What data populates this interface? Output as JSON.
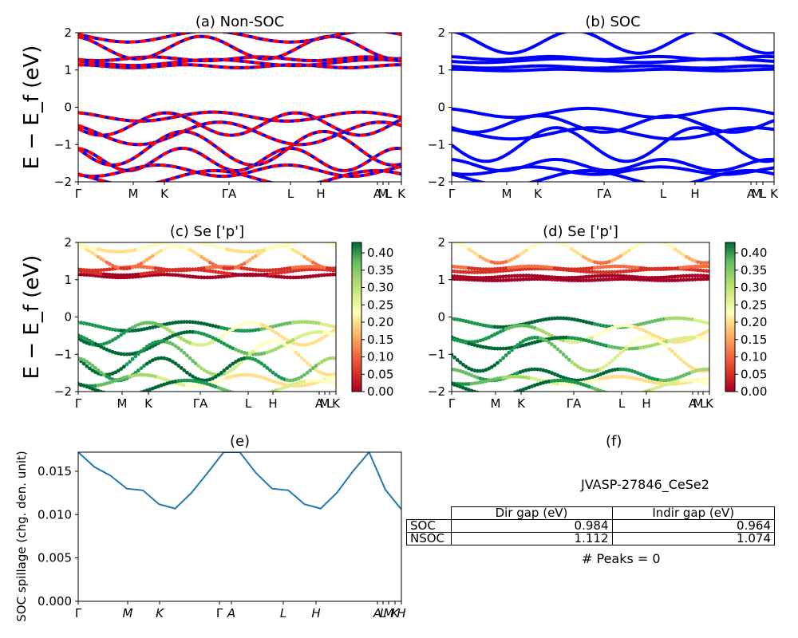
{
  "chart_data": [
    {
      "type": "line",
      "panel": "a",
      "title": "(a) Non-SOC",
      "ylabel": "E − E_f (eV)",
      "ylim": [
        -2,
        2
      ],
      "yticks": [
        "2",
        "1",
        "0",
        "−1",
        "−2"
      ],
      "xticks": [
        "Γ",
        "M",
        "K",
        "ΓA",
        "L",
        "H",
        "A",
        "M",
        "L",
        "K"
      ],
      "series": [
        {
          "color": "#0000ff",
          "values": [
            1.1,
            1.15,
            1.2,
            1.25,
            1.3,
            1.6,
            1.9,
            1.3,
            1.1,
            -0.2,
            -0.35,
            -0.6,
            -0.9,
            -1.2,
            -1.5,
            -1.65,
            -1.9
          ]
        },
        {
          "color": "#ff0000",
          "values": [
            1.1,
            1.15,
            1.2,
            1.25,
            1.3,
            1.6,
            1.9,
            1.3,
            1.1,
            -0.2,
            -0.35,
            -0.6,
            -0.9,
            -1.2,
            -1.5,
            -1.65,
            -1.9
          ]
        }
      ]
    },
    {
      "type": "line",
      "panel": "b",
      "title": "(b) SOC",
      "ylim": [
        -2,
        2
      ],
      "yticks": [
        "2",
        "1",
        "0",
        "−1",
        "−2"
      ],
      "xticks": [
        "Γ",
        "M",
        "K",
        "ΓA",
        "L",
        "H",
        "A",
        "M",
        "L",
        "K"
      ],
      "series": [
        {
          "color": "#0000ff",
          "values": [
            1.0,
            1.05,
            1.1,
            1.25,
            1.3,
            1.35,
            1.9,
            -0.15,
            -0.25,
            -0.6,
            -0.65,
            -1.0,
            -1.5,
            -1.6,
            -1.7
          ]
        }
      ]
    },
    {
      "type": "scatter",
      "panel": "c",
      "title": "(c)  Se ['p']",
      "ylabel": "E − E_f (eV)",
      "ylim": [
        -2,
        2
      ],
      "yticks": [
        "2",
        "1",
        "0",
        "−1",
        "−2"
      ],
      "xticks": [
        "Γ",
        "M",
        "K",
        "ΓA",
        "L",
        "H",
        "A",
        "M",
        "L",
        "K"
      ],
      "colorbar": {
        "min": 0.0,
        "max": 0.43,
        "ticks": [
          "0.00",
          "0.05",
          "0.10",
          "0.15",
          "0.20",
          "0.25",
          "0.30",
          "0.35",
          "0.40"
        ]
      }
    },
    {
      "type": "scatter",
      "panel": "d",
      "title": "(d) Se ['p']",
      "ylim": [
        -2,
        2
      ],
      "yticks": [
        "2",
        "1",
        "0",
        "−1",
        "−2"
      ],
      "xticks": [
        "Γ",
        "M",
        "K",
        "ΓA",
        "L",
        "H",
        "A",
        "M",
        "L",
        "K"
      ],
      "colorbar": {
        "min": 0.0,
        "max": 0.43,
        "ticks": [
          "0.00",
          "0.05",
          "0.10",
          "0.15",
          "0.20",
          "0.25",
          "0.30",
          "0.35",
          "0.40"
        ]
      }
    },
    {
      "type": "line",
      "panel": "e",
      "title": "(e)",
      "ylabel": "SOC spillage (chg. den. unit)",
      "ylim": [
        0,
        0.0172
      ],
      "yticks": [
        "0.000",
        "0.005",
        "0.010",
        "0.015"
      ],
      "xticks": [
        "Γ",
        "M",
        "K",
        "Γ",
        "A",
        "L",
        "H",
        "A",
        "L",
        "M",
        "K",
        "H"
      ],
      "series": [
        {
          "color": "#1f77b4",
          "x": [
            0,
            0.05,
            0.1,
            0.15,
            0.2,
            0.25,
            0.3,
            0.35,
            0.4,
            0.45,
            0.5,
            0.55,
            0.6,
            0.65,
            0.7,
            0.75,
            0.8,
            0.85,
            0.9,
            0.95,
            1.0
          ],
          "values": [
            0.0172,
            0.0155,
            0.0145,
            0.013,
            0.0128,
            0.0112,
            0.0107,
            0.0125,
            0.0148,
            0.0172,
            0.0172,
            0.0148,
            0.013,
            0.0128,
            0.0112,
            0.0107,
            0.0125,
            0.015,
            0.0172,
            0.0129,
            0.0106
          ]
        }
      ]
    },
    {
      "type": "table",
      "panel": "f",
      "title": "(f)",
      "name": "JVASP-27846_CeSe2",
      "columns": [
        "Dir gap (eV)",
        "Indir gap (eV)"
      ],
      "rows": [
        {
          "label": "SOC",
          "values": [
            "0.984",
            "0.964"
          ]
        },
        {
          "label": "NSOC",
          "values": [
            "1.112",
            "1.074"
          ]
        }
      ],
      "footer": "# Peaks = 0"
    }
  ]
}
